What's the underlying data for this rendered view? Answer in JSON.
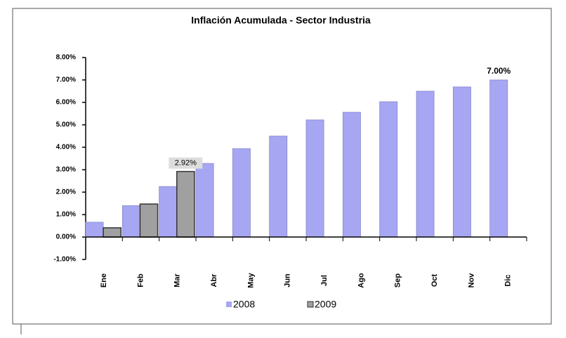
{
  "chart_data": {
    "type": "bar",
    "title": "Inflación Acumulada - Sector Industria",
    "categories": [
      "Ene",
      "Feb",
      "Mar",
      "Abr",
      "May",
      "Jun",
      "Jul",
      "Ago",
      "Sep",
      "Oct",
      "Nov",
      "Dic"
    ],
    "series": [
      {
        "name": "2008",
        "color": "#a6a6f2",
        "values": [
          0.66,
          1.4,
          2.25,
          3.28,
          3.94,
          4.5,
          5.22,
          5.56,
          6.03,
          6.5,
          6.69,
          7.0
        ],
        "value_labels": [
          null,
          null,
          null,
          null,
          null,
          null,
          null,
          null,
          null,
          null,
          null,
          "7.00%"
        ]
      },
      {
        "name": "2009",
        "color": "#a0a0a0",
        "values": [
          0.41,
          1.47,
          2.92,
          null,
          null,
          null,
          null,
          null,
          null,
          null,
          null,
          null
        ],
        "value_labels": [
          null,
          null,
          "2.92%",
          null,
          null,
          null,
          null,
          null,
          null,
          null,
          null,
          null
        ]
      }
    ],
    "ylim": [
      -1,
      8
    ],
    "yticks": [
      {
        "value": -1,
        "label": "-1.00%"
      },
      {
        "value": 0,
        "label": "0.00%"
      },
      {
        "value": 1,
        "label": "1.00%"
      },
      {
        "value": 2,
        "label": "2.00%"
      },
      {
        "value": 3,
        "label": "3.00%"
      },
      {
        "value": 4,
        "label": "4.00%"
      },
      {
        "value": 5,
        "label": "5.00%"
      },
      {
        "value": 6,
        "label": "6.00%"
      },
      {
        "value": 7,
        "label": "7.00%"
      },
      {
        "value": 8,
        "label": "8.00%"
      }
    ],
    "grid": false,
    "legend": "bottom"
  }
}
